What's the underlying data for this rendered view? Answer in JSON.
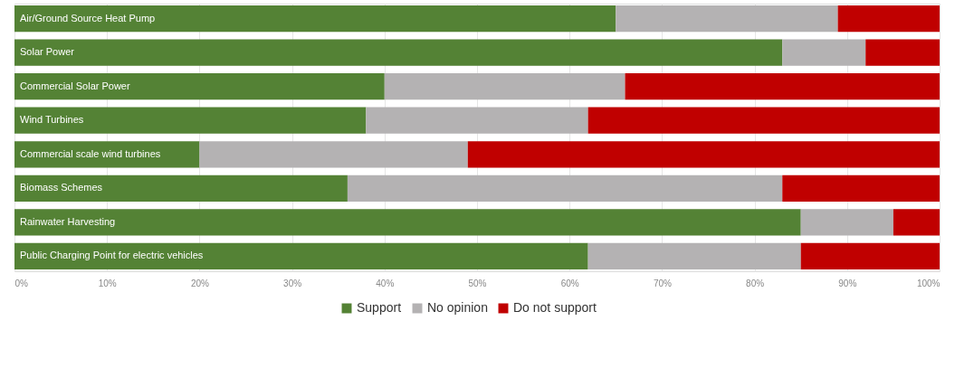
{
  "chart_data": {
    "type": "bar",
    "orientation": "horizontal",
    "stacked": true,
    "categories": [
      "Air/Ground Source Heat Pump",
      "Solar Power",
      "Commercial Solar Power",
      "Wind Turbines",
      "Commercial scale wind turbines",
      "Biomass Schemes",
      "Rainwater Harvesting",
      "Public Charging Point for electric vehicles"
    ],
    "series": [
      {
        "name": "Support",
        "color": "#548235",
        "values": [
          65,
          83,
          40,
          38,
          20,
          36,
          85,
          62
        ]
      },
      {
        "name": "No opinion",
        "color": "#b4b2b3",
        "values": [
          24,
          9,
          26,
          24,
          29,
          47,
          10,
          23
        ]
      },
      {
        "name": "Do not support",
        "color": "#c00000",
        "values": [
          11,
          8,
          34,
          38,
          51,
          17,
          5,
          15
        ]
      }
    ],
    "xlim": [
      0,
      100
    ],
    "xticks": [
      {
        "value": 0,
        "label": "0%"
      },
      {
        "value": 10,
        "label": "10%"
      },
      {
        "value": 20,
        "label": "20%"
      },
      {
        "value": 30,
        "label": "30%"
      },
      {
        "value": 40,
        "label": "40%"
      },
      {
        "value": 50,
        "label": "50%"
      },
      {
        "value": 60,
        "label": "60%"
      },
      {
        "value": 70,
        "label": "70%"
      },
      {
        "value": 80,
        "label": "80%"
      },
      {
        "value": 90,
        "label": "90%"
      },
      {
        "value": 100,
        "label": "100%"
      }
    ],
    "grid": "x",
    "legend": "bottom"
  }
}
